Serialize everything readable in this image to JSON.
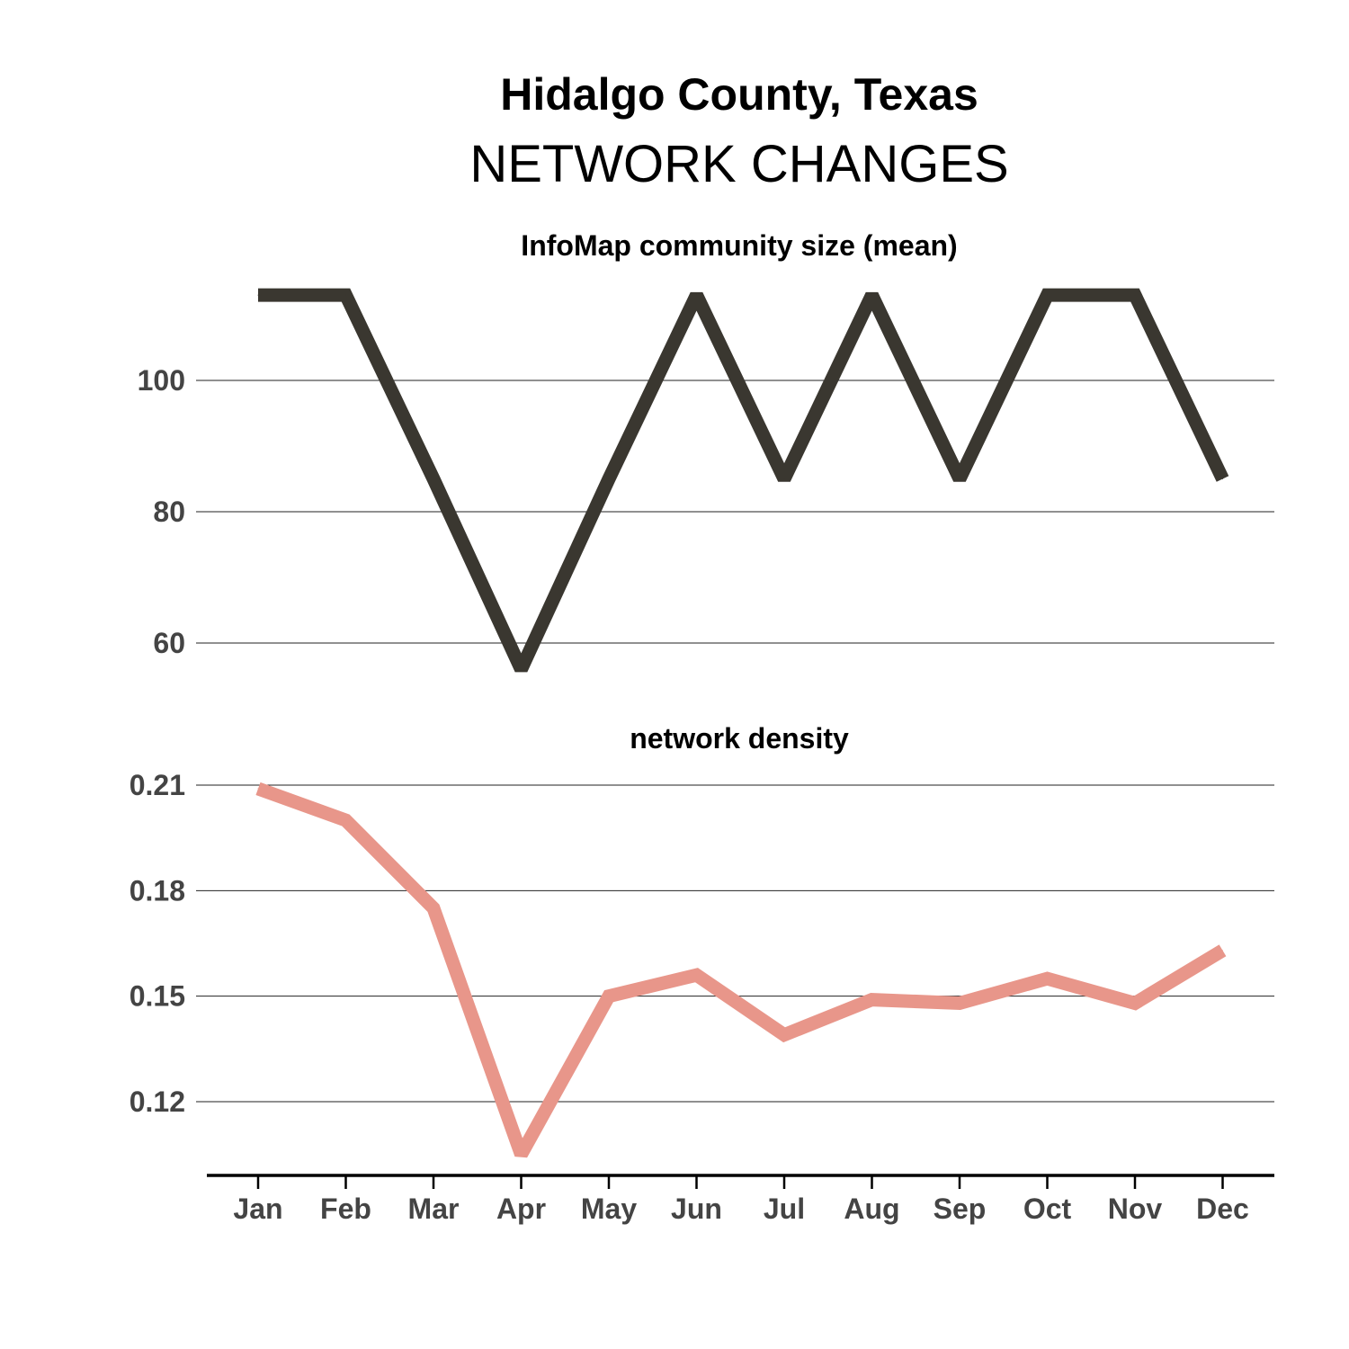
{
  "title": "Hidalgo County, Texas",
  "subtitle": "NETWORK CHANGES",
  "chart_data": [
    {
      "type": "line",
      "title": "InfoMap community size (mean)",
      "x": [
        "Jan",
        "Feb",
        "Mar",
        "Apr",
        "May",
        "Jun",
        "Jul",
        "Aug",
        "Sep",
        "Oct",
        "Nov",
        "Dec"
      ],
      "series": [
        {
          "values": [
            113,
            113,
            85,
            56,
            85,
            113,
            85,
            113,
            85,
            113,
            113,
            85
          ],
          "color": "#3a3730"
        }
      ],
      "yticks": [
        60,
        80,
        100
      ],
      "ylim": [
        53,
        115
      ],
      "grid": true
    },
    {
      "type": "line",
      "title": "network density",
      "x": [
        "Jan",
        "Feb",
        "Mar",
        "Apr",
        "May",
        "Jun",
        "Jul",
        "Aug",
        "Sep",
        "Oct",
        "Nov",
        "Dec"
      ],
      "series": [
        {
          "values": [
            0.209,
            0.2,
            0.175,
            0.105,
            0.15,
            0.156,
            0.139,
            0.149,
            0.148,
            0.155,
            0.148,
            0.163
          ],
          "color": "#e8968a"
        }
      ],
      "yticks": [
        "0.12",
        "0.15",
        "0.18",
        "0.21"
      ],
      "ylim": [
        0.1,
        0.212
      ],
      "grid": true
    }
  ]
}
